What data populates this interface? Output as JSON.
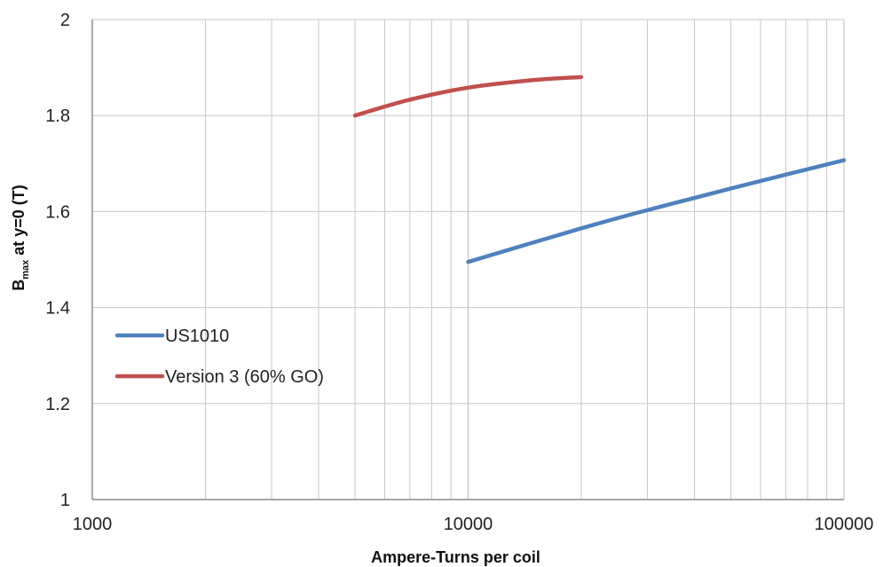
{
  "chart_data": {
    "type": "line",
    "xscale": "log",
    "xlim": [
      1000,
      100000
    ],
    "ylim": [
      1,
      2
    ],
    "xlabel": "Ampere-Turns per coil",
    "ylabel": {
      "base": "B",
      "subscript": "max",
      "rest": " at y=0 (T)"
    },
    "x_ticks": [
      1000,
      10000,
      100000
    ],
    "x_tick_labels": [
      "1000",
      "10000",
      "100000"
    ],
    "y_ticks": [
      1,
      1.2,
      1.4,
      1.6,
      1.8,
      2
    ],
    "y_tick_labels": [
      "1",
      "1.2",
      "1.4",
      "1.6",
      "1.8",
      "2"
    ],
    "grid": true,
    "legend_position": "left-lower",
    "colors": {
      "grid": "#c8c8c8",
      "axis": "#8a8a8a"
    },
    "series": [
      {
        "name": "US1010",
        "color": "#4f81bd",
        "x": [
          10000,
          20000,
          30000,
          50000,
          100000
        ],
        "y": [
          1.495,
          1.565,
          1.603,
          1.648,
          1.707
        ]
      },
      {
        "name": "Version 3 (60% GO)",
        "color": "#c0504d",
        "x": [
          5000,
          7000,
          10000,
          15000,
          20000
        ],
        "y": [
          1.8,
          1.833,
          1.858,
          1.874,
          1.88
        ]
      }
    ]
  }
}
